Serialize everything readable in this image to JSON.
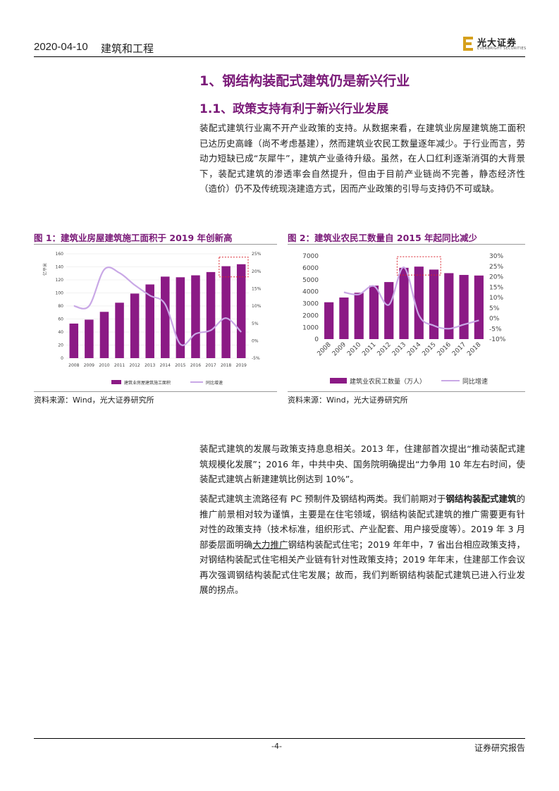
{
  "header": {
    "date": "2020-04-10",
    "sector": "建筑和工程",
    "logo_cn": "光大证券",
    "logo_en": "EVERBRIGHT SECURITIES"
  },
  "section": {
    "h1": "1、钢结构装配式建筑仍是新兴行业",
    "h2": "1.1、政策支持有利于新兴行业发展"
  },
  "paragraphs": {
    "p1": "装配式建筑行业离不开产业政策的支持。从数据来看，在建筑业房屋建筑施工面积已达历史高峰（尚不考虑基建），然而建筑业农民工数量逐年减少。于行业而言，劳动力短缺已成“灰犀牛”，建筑产业亟待升级。虽然，在人口红利逐渐消弭的大背景下，装配式建筑的渗透率会自然提升，但由于目前产业链尚不完善，静态经济性（造价）仍不及传统现浇建造方式，因而产业政策的引导与支持仍不可或缺。",
    "p2": "装配式建筑的发展与政策支持息息相关。2013 年，住建部首次提出“推动装配式建筑规模化发展”；2016 年，中共中央、国务院明确提出“力争用 10 年左右时间，使装配式建筑占新建建筑比例达到 10%”。",
    "p3_a": "装配式建筑主流路径有 PC 预制件及钢结构两类。我们前期对于",
    "p3_b": "钢结构装配式建筑",
    "p3_c": "的推广前景相对较为谨慎，主要是在住宅领域，钢结构装配式建筑的推广需要更有针对性的政策支持（技术标准，组织形式、产业配套、用户接受度等）。2019 年 3 月部委层面明确",
    "p3_d": "大力推广",
    "p3_e": "钢结构装配式住宅；2019 年年中，7 省出台相应政策支持，对钢结构装配式住宅相关产业链有针对性政策支持；2019 年年末，住建部工作会议再次强调钢结构装配式住宅发展；故而，我们判断钢结构装配式建筑已进入行业发展的拐点。"
  },
  "figures": {
    "fig1_title": "图 1：建筑业房屋建筑施工面积于 2019 年创新高",
    "fig2_title": "图 2：建筑业农民工数量自 2015 年起同比减少",
    "source1": "资料来源：Wind，光大证券研究所",
    "source2": "资料来源：Wind，光大证券研究所"
  },
  "chart_data": [
    {
      "type": "bar",
      "categories": [
        "2008",
        "2009",
        "2010",
        "2011",
        "2012",
        "2013",
        "2014",
        "2015",
        "2016",
        "2017",
        "2018",
        "2019"
      ],
      "series": [
        {
          "name": "建筑业房屋建筑施工面积",
          "type": "bar",
          "axis": "left",
          "values": [
            53,
            59,
            71,
            85,
            99,
            113,
            125,
            124,
            127,
            132,
            141,
            144
          ]
        },
        {
          "name": "同比增速",
          "type": "line",
          "axis": "right",
          "values": [
            10.0,
            10.0,
            20.5,
            19.5,
            16.0,
            13.0,
            10.5,
            -1.0,
            2.0,
            3.0,
            6.5,
            2.5
          ]
        }
      ],
      "ylabel": "亿平米",
      "ylim": [
        0,
        160
      ],
      "yticks": [
        0,
        20,
        40,
        60,
        80,
        100,
        120,
        140,
        160
      ],
      "y2lim": [
        -5,
        25
      ],
      "y2ticks": [
        "-5%",
        "0%",
        "5%",
        "10%",
        "15%",
        "20%",
        "25%"
      ],
      "grid": true,
      "legend": "bottom",
      "highlight": [
        "2018",
        "2019"
      ],
      "colors": {
        "bar": "#8b1a85",
        "line": "#c9a8e6"
      }
    },
    {
      "type": "bar",
      "categories": [
        "2008",
        "2009",
        "2010",
        "2011",
        "2012",
        "2013",
        "2014",
        "2015",
        "2016",
        "2017",
        "2018"
      ],
      "series": [
        {
          "name": "建筑业农民工数量（万人）",
          "type": "bar",
          "axis": "left",
          "values": [
            3100,
            3500,
            3900,
            4500,
            4800,
            6000,
            6100,
            5850,
            5550,
            5400,
            5350
          ]
        },
        {
          "name": "同比增速",
          "type": "line",
          "axis": "right",
          "values": [
            null,
            12.5,
            11.5,
            15.5,
            6.5,
            24.5,
            1.5,
            -3.5,
            -5.0,
            -3.0,
            -1.0
          ]
        }
      ],
      "ylim": [
        0,
        7000
      ],
      "yticks": [
        0,
        1000,
        2000,
        3000,
        4000,
        5000,
        6000,
        7000
      ],
      "y2lim": [
        -10,
        30
      ],
      "y2ticks": [
        "-10%",
        "-5%",
        "0%",
        "5%",
        "10%",
        "15%",
        "20%",
        "25%",
        "30%"
      ],
      "grid": false,
      "legend": "bottom",
      "highlight": [
        "2013",
        "2014",
        "2015"
      ],
      "colors": {
        "bar": "#8b1a85",
        "line": "#c9a8e6"
      }
    }
  ],
  "footer": {
    "page": "-4-",
    "label": "证券研究报告"
  }
}
